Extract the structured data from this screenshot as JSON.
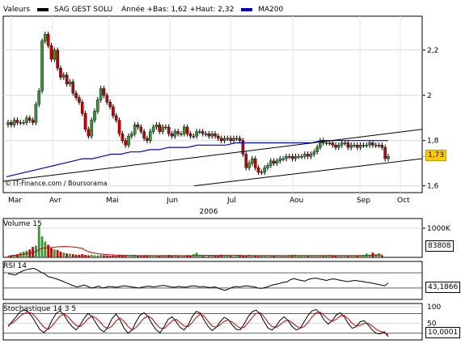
{
  "header": {
    "series_label": "Valeurs",
    "stock_name": "SAG GEST SOLU",
    "annee": "Année +Bas: 1,62 +Haut: 2,32",
    "ma_label": "MA200",
    "colors": {
      "stock": "#000000",
      "ma": "#0000cc"
    }
  },
  "copyright": "© IT-Finance.com / Boursorama",
  "last_price_label": "1,73",
  "colors": {
    "up": "#339933",
    "down": "#cc0000",
    "panel_bg": "#ffffff"
  },
  "chart_data": [
    {
      "type": "candlestick",
      "title": "",
      "y_ticks": [
        "2,2",
        "2",
        "1,8",
        "1,6"
      ],
      "ylim": [
        1.57,
        2.35
      ],
      "x_labels": [
        "Mar",
        "Avr",
        "Mai",
        "Jun",
        "Jul",
        "Aou",
        "Sep",
        "Oct"
      ],
      "year_label": "2006",
      "candles_close": [
        1.88,
        1.87,
        1.89,
        1.88,
        1.88,
        1.88,
        1.9,
        1.89,
        1.88,
        1.96,
        2.02,
        2.24,
        2.27,
        2.22,
        2.16,
        2.2,
        2.12,
        2.08,
        2.09,
        2.05,
        2.06,
        2.01,
        1.99,
        1.97,
        1.92,
        1.85,
        1.82,
        1.89,
        1.93,
        1.98,
        2.03,
        2.0,
        1.97,
        1.95,
        1.91,
        1.89,
        1.83,
        1.8,
        1.78,
        1.82,
        1.83,
        1.87,
        1.86,
        1.84,
        1.81,
        1.8,
        1.84,
        1.86,
        1.87,
        1.84,
        1.86,
        1.86,
        1.83,
        1.82,
        1.84,
        1.83,
        1.83,
        1.86,
        1.83,
        1.82,
        1.82,
        1.84,
        1.84,
        1.83,
        1.83,
        1.82,
        1.83,
        1.82,
        1.81,
        1.8,
        1.81,
        1.81,
        1.8,
        1.81,
        1.81,
        1.8,
        1.74,
        1.68,
        1.7,
        1.72,
        1.68,
        1.66,
        1.66,
        1.68,
        1.69,
        1.71,
        1.7,
        1.71,
        1.72,
        1.72,
        1.73,
        1.73,
        1.72,
        1.73,
        1.73,
        1.73,
        1.74,
        1.73,
        1.74,
        1.75,
        1.77,
        1.8,
        1.79,
        1.79,
        1.79,
        1.78,
        1.77,
        1.78,
        1.79,
        1.79,
        1.77,
        1.78,
        1.78,
        1.77,
        1.78,
        1.78,
        1.78,
        1.79,
        1.78,
        1.78,
        1.78,
        1.77,
        1.72,
        1.73
      ],
      "ma200": [
        1.64,
        1.65,
        1.66,
        1.67,
        1.68,
        1.69,
        1.7,
        1.71,
        1.72,
        1.72,
        1.73,
        1.74,
        1.74,
        1.75,
        1.75,
        1.76,
        1.76,
        1.77,
        1.77,
        1.77,
        1.78,
        1.78,
        1.78,
        1.78,
        1.79,
        1.79,
        1.79,
        1.79,
        1.79,
        1.79,
        1.79,
        1.79,
        1.79,
        1.8,
        1.8,
        1.8,
        1.8,
        1.8,
        1.8,
        1.8,
        1.8
      ],
      "trendlines": [
        {
          "from": [
            "Mar",
            1.62
          ],
          "to": [
            "Oct",
            1.85
          ]
        },
        {
          "from": [
            "Jun",
            1.6
          ],
          "to": [
            "Oct",
            1.72
          ]
        }
      ]
    },
    {
      "type": "bar",
      "title": "Volume 15",
      "y_ticks": [
        "1000K"
      ],
      "last_value_label": "83808",
      "values": [
        5,
        8,
        10,
        12,
        18,
        22,
        25,
        30,
        40,
        45,
        120,
        80,
        60,
        48,
        35,
        30,
        28,
        22,
        18,
        15,
        14,
        12,
        10,
        10,
        12,
        9,
        8,
        10,
        8,
        7,
        9,
        8,
        7,
        6,
        7,
        6,
        8,
        7,
        6,
        5,
        8,
        9,
        6,
        5,
        7,
        8,
        6,
        5,
        6,
        7,
        8,
        6,
        9,
        7,
        6,
        5,
        5,
        7,
        8,
        6,
        12,
        18,
        9,
        6,
        5,
        5,
        7,
        6,
        8,
        10,
        9,
        7,
        6,
        5,
        7,
        8,
        6,
        7,
        9,
        8,
        6,
        5,
        7,
        6,
        5,
        7,
        8,
        6,
        5,
        6,
        7,
        8,
        9,
        10,
        7,
        6,
        5,
        6,
        7,
        8,
        7,
        6,
        5,
        8,
        9,
        6,
        7,
        6,
        8,
        7,
        6,
        5,
        6,
        7,
        8,
        9,
        14,
        10,
        18,
        12,
        15,
        8
      ]
    },
    {
      "type": "line",
      "title": "RSI 14",
      "last_value_label": "43,1866",
      "values": [
        68,
        66,
        64,
        70,
        75,
        78,
        80,
        82,
        78,
        72,
        68,
        60,
        58,
        55,
        52,
        48,
        44,
        40,
        36,
        33,
        35,
        38,
        34,
        30,
        32,
        35,
        30,
        32,
        34,
        33,
        32,
        34,
        36,
        35,
        33,
        32,
        30,
        32,
        34,
        35,
        33,
        34,
        36,
        37,
        35,
        33,
        32,
        34,
        33,
        32,
        34,
        36,
        35,
        33,
        34,
        32,
        31,
        33,
        30,
        26,
        24,
        28,
        32,
        34,
        33,
        35,
        36,
        34,
        33,
        30,
        29,
        31,
        34,
        38,
        40,
        42,
        45,
        46,
        52,
        55,
        52,
        50,
        48,
        53,
        55,
        56,
        54,
        52,
        50,
        53,
        54,
        52,
        50,
        48,
        47,
        49,
        50,
        48,
        47,
        45,
        44,
        42,
        40,
        38,
        36,
        43
      ]
    },
    {
      "type": "line",
      "title": "Stochastique 14 3 5",
      "y_ticks": [
        "100",
        "50"
      ],
      "last_value_label": "10,0001",
      "series": [
        {
          "color": "#000000",
          "values": [
            40,
            55,
            70,
            85,
            90,
            85,
            70,
            50,
            30,
            22,
            35,
            60,
            80,
            88,
            75,
            55,
            40,
            30,
            45,
            65,
            80,
            70,
            50,
            32,
            24,
            40,
            65,
            78,
            60,
            35,
            20,
            30,
            55,
            75,
            82,
            70,
            48,
            30,
            22,
            40,
            62,
            70,
            55,
            38,
            30,
            45,
            70,
            86,
            82,
            60,
            40,
            28,
            38,
            55,
            68,
            62,
            45,
            32,
            30,
            48,
            70,
            85,
            90,
            78,
            55,
            35,
            30,
            42,
            60,
            70,
            58,
            40,
            30,
            35,
            55,
            75,
            88,
            92,
            80,
            60,
            48,
            58,
            75,
            82,
            70,
            50,
            35,
            40,
            55,
            58,
            45,
            30,
            20,
            18,
            25,
            10
          ]
        },
        {
          "color": "#cc0000",
          "values": [
            45,
            50,
            60,
            72,
            80,
            84,
            80,
            68,
            52,
            38,
            32,
            42,
            58,
            72,
            78,
            70,
            56,
            44,
            40,
            50,
            64,
            72,
            66,
            54,
            40,
            34,
            42,
            58,
            66,
            56,
            40,
            30,
            38,
            52,
            66,
            72,
            64,
            48,
            36,
            34,
            46,
            58,
            62,
            52,
            42,
            40,
            52,
            68,
            78,
            72,
            56,
            42,
            38,
            46,
            56,
            60,
            54,
            44,
            36,
            38,
            52,
            68,
            80,
            82,
            70,
            52,
            40,
            38,
            46,
            56,
            60,
            52,
            42,
            36,
            40,
            54,
            70,
            82,
            84,
            74,
            62,
            56,
            62,
            72,
            74,
            64,
            50,
            42,
            44,
            50,
            50,
            42,
            32,
            26,
            22,
            16
          ]
        }
      ]
    }
  ]
}
